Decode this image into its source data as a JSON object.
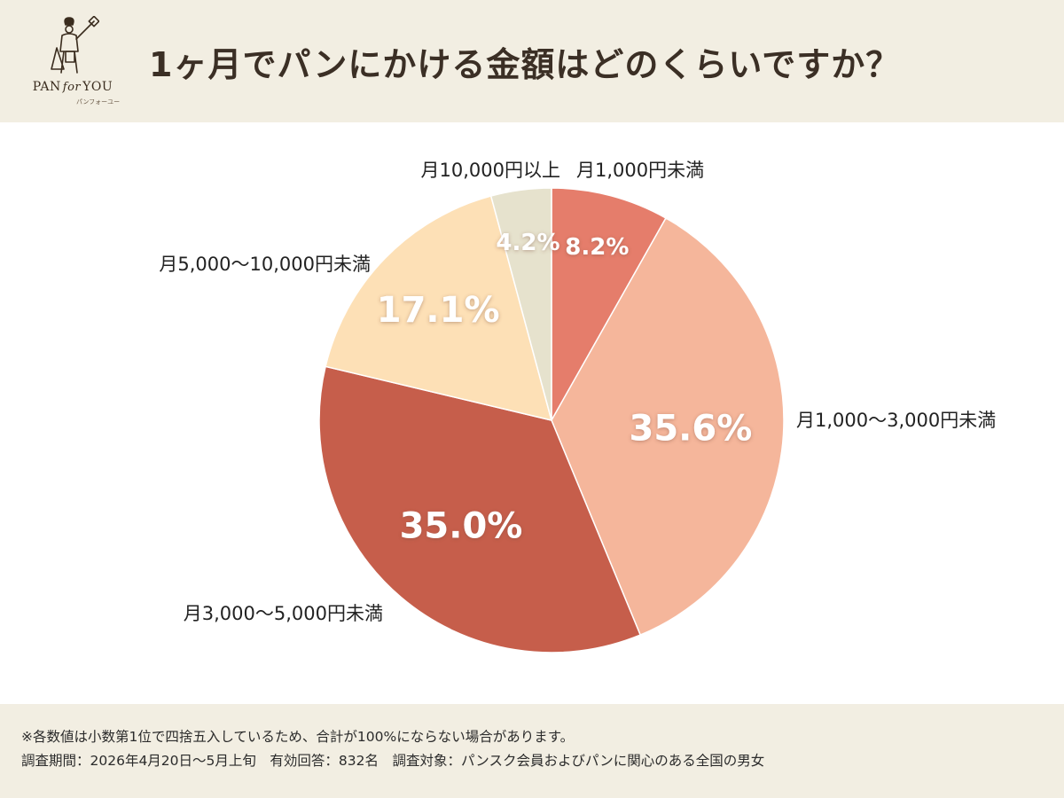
{
  "header": {
    "title": "1ヶ月でパンにかける金額はどのくらいですか？",
    "logo": {
      "brand_left": "PAN",
      "brand_for": "for",
      "brand_right": "YOU",
      "subtitle": "パンフォーユー"
    }
  },
  "colors": {
    "header_bg": "#f2eee2",
    "title_text": "#3b2f25"
  },
  "chart_data": {
    "type": "pie",
    "title": "1ヶ月でパンにかける金額はどのくらいですか？",
    "unit": "%",
    "start_angle_deg": 0,
    "direction": "clockwise",
    "slices": [
      {
        "label": "月1,000円未満",
        "value": 8.2,
        "value_label": "8.2%",
        "color": "#e57d6b"
      },
      {
        "label": "月1,000～3,000円未満",
        "value": 35.6,
        "value_label": "35.6%",
        "color": "#f5b69b"
      },
      {
        "label": "月3,000～5,000円未満",
        "value": 35.0,
        "value_label": "35.0%",
        "color": "#c65e4b"
      },
      {
        "label": "月5,000～10,000円未満",
        "value": 17.1,
        "value_label": "17.1%",
        "color": "#fde0b6"
      },
      {
        "label": "月10,000円以上",
        "value": 4.2,
        "value_label": "4.2%",
        "color": "#e6e2cd"
      }
    ]
  },
  "footer": {
    "note": "※各数値は小数第1位で四捨五入しているため、合計が100%にならない場合があります。",
    "survey_info": "調査期間：2026年4月20日～5月上旬　有効回答：832名　調査対象：パンスク会員およびパンに関心のある全国の男女"
  }
}
